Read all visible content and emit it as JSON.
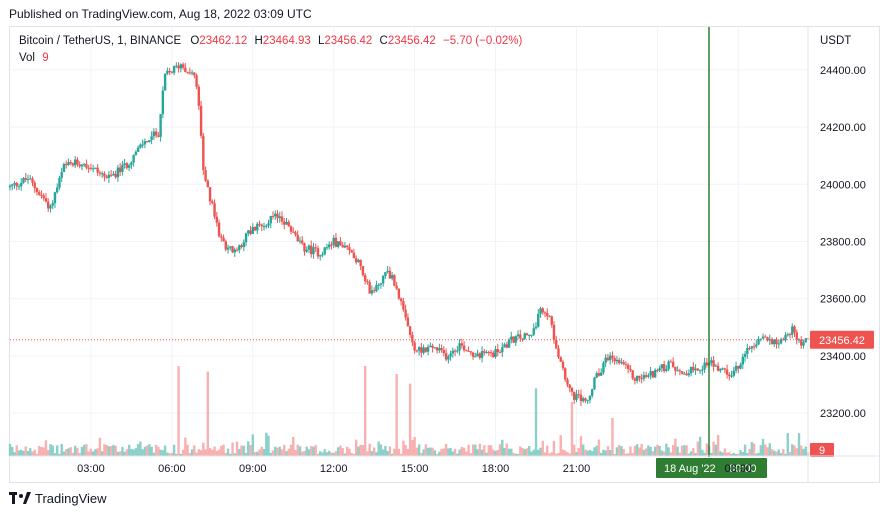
{
  "header": {
    "published_text": "Published on TradingView.com, Aug 18, 2022 03:09 UTC"
  },
  "legend": {
    "symbol": "Bitcoin / TetherUS, 1, BINANCE",
    "open_label": "O",
    "open": "23462.12",
    "high_label": "H",
    "high": "23464.93",
    "low_label": "L",
    "low": "23456.42",
    "close_label": "C",
    "close": "23456.42",
    "change": "−5.70 (−0.02%)",
    "vol_label": "Vol",
    "vol": "9"
  },
  "price_axis": {
    "currency": "USDT",
    "last_price": "23456.42",
    "volume_badge": "9"
  },
  "crosshair": {
    "date_label": "18 Aug '22",
    "time_label": "00:00"
  },
  "footer": {
    "brand": "TradingView"
  },
  "colors": {
    "up": "#26a69a",
    "down": "#ef5350",
    "up_volume": "#80cbc4",
    "down_volume": "#f7a9a7",
    "crosshair": "#2e7d32",
    "price_line": "#ef5350",
    "grid": "#f0f3fa",
    "text": "#131722"
  },
  "chart_data": {
    "type": "candlestick",
    "symbol": "Bitcoin / TetherUS",
    "interval": "1",
    "exchange": "BINANCE",
    "y_axis": {
      "ticks": [
        23200,
        23400,
        23600,
        23800,
        24000,
        24200,
        24400
      ],
      "tick_labels": [
        "23200.00",
        "23400.00",
        "23600.00",
        "23800.00",
        "24000.00",
        "24200.00",
        "24400.00"
      ],
      "range": [
        23050,
        24550
      ]
    },
    "x_axis": {
      "ticks": [
        180,
        360,
        540,
        720,
        900,
        1080,
        1260,
        1440,
        1620
      ],
      "tick_labels": [
        "03:00",
        "06:00",
        "09:00",
        "12:00",
        "15:00",
        "18:00",
        "21:00",
        "00:00",
        "03:00"
      ],
      "range": [
        0,
        1775
      ]
    },
    "grid": true,
    "last_price": 23456.42,
    "price_path": [
      [
        0,
        23990
      ],
      [
        40,
        24020
      ],
      [
        90,
        23920
      ],
      [
        120,
        24060
      ],
      [
        160,
        24080
      ],
      [
        220,
        24020
      ],
      [
        260,
        24070
      ],
      [
        300,
        24150
      ],
      [
        330,
        24180
      ],
      [
        345,
        24380
      ],
      [
        380,
        24420
      ],
      [
        410,
        24380
      ],
      [
        420,
        24280
      ],
      [
        430,
        24040
      ],
      [
        450,
        23920
      ],
      [
        470,
        23800
      ],
      [
        500,
        23760
      ],
      [
        530,
        23830
      ],
      [
        570,
        23870
      ],
      [
        600,
        23890
      ],
      [
        620,
        23850
      ],
      [
        650,
        23780
      ],
      [
        690,
        23760
      ],
      [
        720,
        23800
      ],
      [
        760,
        23760
      ],
      [
        780,
        23720
      ],
      [
        800,
        23620
      ],
      [
        820,
        23650
      ],
      [
        840,
        23700
      ],
      [
        860,
        23640
      ],
      [
        880,
        23520
      ],
      [
        900,
        23420
      ],
      [
        940,
        23430
      ],
      [
        970,
        23400
      ],
      [
        1000,
        23440
      ],
      [
        1040,
        23400
      ],
      [
        1080,
        23410
      ],
      [
        1120,
        23460
      ],
      [
        1160,
        23470
      ],
      [
        1180,
        23560
      ],
      [
        1200,
        23530
      ],
      [
        1225,
        23380
      ],
      [
        1250,
        23260
      ],
      [
        1285,
        23240
      ],
      [
        1300,
        23310
      ],
      [
        1330,
        23400
      ],
      [
        1360,
        23370
      ],
      [
        1390,
        23320
      ],
      [
        1420,
        23330
      ],
      [
        1440,
        23350
      ],
      [
        1470,
        23370
      ],
      [
        1500,
        23340
      ],
      [
        1530,
        23360
      ],
      [
        1560,
        23380
      ],
      [
        1600,
        23330
      ],
      [
        1620,
        23360
      ],
      [
        1650,
        23440
      ],
      [
        1680,
        23460
      ],
      [
        1710,
        23450
      ],
      [
        1740,
        23490
      ],
      [
        1760,
        23445
      ],
      [
        1775,
        23456
      ]
    ],
    "volume_spikes": [
      [
        375,
        1
      ],
      [
        440,
        0.93
      ],
      [
        790,
        1
      ],
      [
        860,
        0.9
      ],
      [
        890,
        0.78
      ],
      [
        1170,
        0.72
      ],
      [
        1250,
        0.55
      ],
      [
        1340,
        0.35
      ]
    ]
  }
}
